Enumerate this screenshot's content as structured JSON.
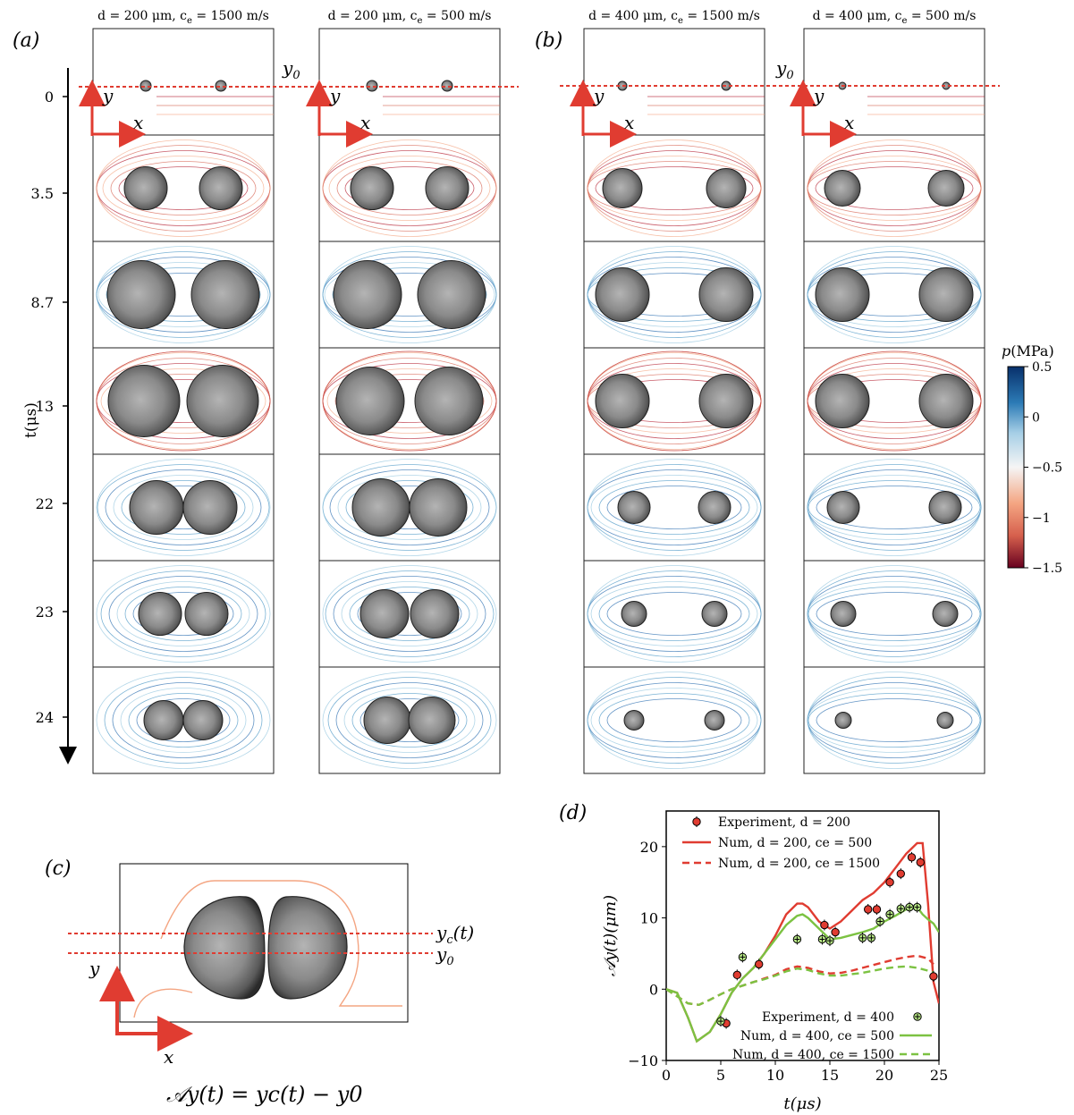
{
  "panel_labels": {
    "a": "(a)",
    "b": "(b)",
    "c": "(c)",
    "d": "(d)"
  },
  "columns": [
    {
      "header": "d = 200 μm, c",
      "sub": "e",
      "header_tail": " = 1500 m/s"
    },
    {
      "header": "d = 200 μm, c",
      "sub": "e",
      "header_tail": " = 500 m/s"
    },
    {
      "header": "d = 400 μm, c",
      "sub": "e",
      "header_tail": " = 1500 m/s"
    },
    {
      "header": "d = 400 μm, c",
      "sub": "e",
      "header_tail": " = 500 m/s"
    }
  ],
  "time_axis": {
    "label": "t(μs)",
    "ticks": [
      "0",
      "3.5",
      "8.7",
      "13",
      "22",
      "23",
      "24"
    ]
  },
  "y0_label": "y",
  "y0_sub": "0",
  "axis_letters": {
    "x": "x",
    "y": "y"
  },
  "colorbar": {
    "title": "p(MPa)",
    "ticks": [
      "0.5",
      "0",
      "−0.5",
      "−1",
      "−1.5"
    ],
    "values": [
      0.5,
      0,
      -0.5,
      -1,
      -1.5
    ],
    "colors": [
      "#08306b",
      "#2166ac",
      "#92c5de",
      "#f7f7f7",
      "#f4a582",
      "#d6604d",
      "#67001f"
    ]
  },
  "panel_c": {
    "label_yc": "y",
    "label_yc_sub": "c",
    "label_yc_tail": "(t)",
    "label_y0": "y",
    "label_y0_sub": "0",
    "equation": "𝒜y(t) = yc(t) − y0"
  },
  "chart_data": {
    "type": "line",
    "xlabel": "t(μs)",
    "ylabel": "𝒜y(t)(μm)",
    "xlim": [
      0,
      25
    ],
    "ylim": [
      -10,
      25
    ],
    "xticks": [
      0,
      5,
      10,
      15,
      20,
      25
    ],
    "yticks": [
      -10,
      0,
      10,
      20
    ],
    "legend_top": [
      {
        "label": "Experiment, d = 200",
        "style": "marker-red"
      },
      {
        "label": "Num, d = 200, ce = 500",
        "style": "solid-red"
      },
      {
        "label": "Num, d = 200, ce = 1500",
        "style": "dash-red"
      }
    ],
    "legend_bottom": [
      {
        "label": "Experiment, d = 400",
        "style": "marker-green"
      },
      {
        "label": "Num, d = 400, ce = 500",
        "style": "solid-green"
      },
      {
        "label": "Num, d = 400, ce = 1500",
        "style": "dash-green"
      }
    ],
    "series": [
      {
        "name": "Num, d = 200, ce = 500",
        "color": "#e03c31",
        "dash": false,
        "x": [
          0,
          1,
          2,
          2.8,
          4,
          5,
          6,
          7,
          8,
          9,
          10,
          11,
          12,
          12.5,
          13,
          14,
          15,
          16,
          17,
          18,
          19,
          20,
          21,
          22,
          23,
          23.5,
          24,
          24.5,
          25
        ],
        "y": [
          0,
          -0.5,
          -4,
          -7.3,
          -6,
          -3.5,
          -0.5,
          1.5,
          3,
          5,
          7.5,
          10.5,
          12,
          12,
          11.5,
          9.5,
          8.5,
          9.5,
          11,
          12.5,
          13.5,
          15,
          17,
          19,
          20.5,
          20.5,
          12,
          1,
          -2
        ]
      },
      {
        "name": "Num, d = 200, ce = 1500",
        "color": "#e03c31",
        "dash": true,
        "x": [
          0,
          1,
          2,
          3,
          4,
          5,
          6,
          7,
          8,
          9,
          10,
          11,
          12,
          13,
          14,
          15,
          16,
          17,
          18,
          19,
          20,
          21,
          22,
          23,
          24,
          24.5
        ],
        "y": [
          0,
          -1,
          -2,
          -2.2,
          -1.5,
          -0.7,
          0,
          0.5,
          1,
          1.5,
          2,
          2.8,
          3.2,
          3,
          2.5,
          2.2,
          2.3,
          2.6,
          3,
          3.4,
          3.8,
          4.2,
          4.5,
          4.7,
          4.3,
          3.5
        ]
      },
      {
        "name": "Num, d = 400, ce = 500",
        "color": "#7cc242",
        "dash": false,
        "x": [
          0,
          1,
          2,
          2.8,
          4,
          5,
          6,
          7,
          8,
          9,
          10,
          11,
          12,
          12.5,
          13,
          14,
          15,
          16,
          17,
          18,
          19,
          20,
          21,
          22,
          23,
          23.5,
          24,
          24.5,
          25
        ],
        "y": [
          0,
          -0.5,
          -4,
          -7.3,
          -6,
          -3.5,
          -0.5,
          1.5,
          3,
          5,
          7,
          9,
          10.3,
          10.5,
          10,
          8.5,
          7,
          7.2,
          7.6,
          8,
          8.5,
          9.5,
          10.3,
          11.2,
          11.5,
          10.5,
          9.8,
          9.2,
          8
        ]
      },
      {
        "name": "Num, d = 400, ce = 1500",
        "color": "#7cc242",
        "dash": true,
        "x": [
          0,
          1,
          2,
          3,
          4,
          5,
          6,
          7,
          8,
          9,
          10,
          11,
          12,
          13,
          14,
          15,
          16,
          17,
          18,
          19,
          20,
          21,
          22,
          23,
          24,
          24.5
        ],
        "y": [
          0,
          -1,
          -2,
          -2.2,
          -1.5,
          -0.7,
          0,
          0.5,
          1,
          1.4,
          1.9,
          2.5,
          2.9,
          2.7,
          2.2,
          1.9,
          1.9,
          2.1,
          2.3,
          2.6,
          2.9,
          3.1,
          3.2,
          3.0,
          2.6,
          2.4
        ]
      }
    ],
    "experiment_d200": {
      "color": "#e03c31",
      "x": [
        5.5,
        6.5,
        8.5,
        14.5,
        15.5,
        18.5,
        19.3,
        20.5,
        21.5,
        22.5,
        23.3,
        24.5
      ],
      "y": [
        -4.8,
        2,
        3.5,
        9,
        8,
        11.2,
        11.2,
        15,
        16.2,
        18.5,
        17.8,
        1.8
      ]
    },
    "experiment_d400": {
      "color": "#b8e986",
      "x": [
        5,
        7,
        12,
        14.3,
        15,
        18,
        18.8,
        19.6,
        20.5,
        21.5,
        22.3,
        23
      ],
      "y": [
        -4.5,
        4.5,
        7,
        7,
        6.8,
        7.2,
        7.2,
        9.5,
        10.5,
        11.3,
        11.5,
        11.5
      ]
    }
  }
}
